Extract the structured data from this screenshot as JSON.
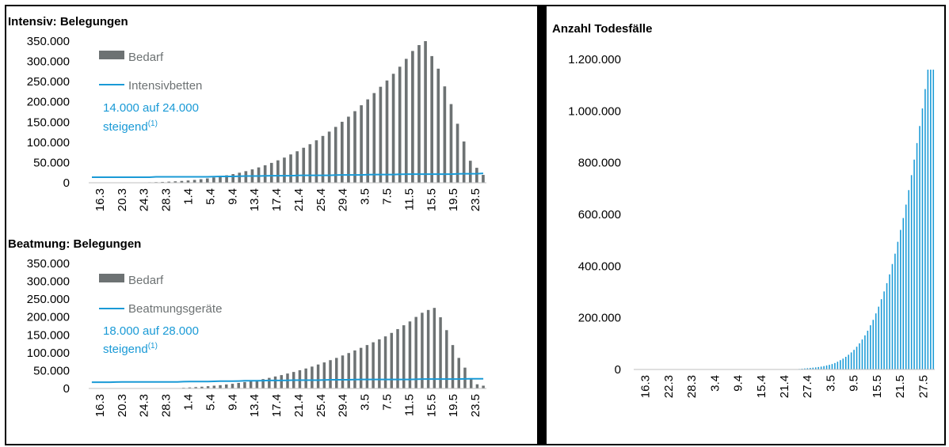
{
  "chart_data": [
    {
      "type": "bar",
      "title": "Intensiv: Belegungen",
      "yticks": [
        "0",
        "50.000",
        "100.000",
        "150.000",
        "200.000",
        "250.000",
        "300.000",
        "350.000"
      ],
      "ylim": [
        0,
        360000
      ],
      "xtick_labels": [
        "16.3",
        "20.3",
        "24.3",
        "28.3",
        "1.4",
        "5.4",
        "9.4",
        "13.4",
        "17.4",
        "21.4",
        "25.4",
        "29.4",
        "3.5",
        "7.5",
        "11.5",
        "15.5",
        "19.5",
        "23.5"
      ],
      "legend": {
        "bar_label": "Bedarf",
        "line_label": "Intensivbetten",
        "note": "14.000 auf 24.000",
        "note2": "steigend",
        "note_sup": "(1)"
      },
      "series": [
        {
          "name": "Bedarf",
          "kind": "bar",
          "color": "#6d7273",
          "values": [
            0,
            0,
            0,
            0,
            0,
            0,
            0,
            500,
            800,
            1200,
            1600,
            2100,
            2800,
            3600,
            4600,
            5800,
            7200,
            9000,
            11000,
            13500,
            16000,
            19000,
            22000,
            25500,
            29500,
            34000,
            39000,
            44500,
            50500,
            57000,
            64000,
            72000,
            80000,
            89000,
            98000,
            108000,
            119000,
            130000,
            142000,
            155000,
            168000,
            182000,
            197000,
            212000,
            228000,
            244000,
            260000,
            277000,
            295000,
            315000,
            335000,
            350000,
            360000,
            322000,
            290000,
            245000,
            200000,
            150000,
            105000,
            56000,
            38000,
            20000
          ]
        },
        {
          "name": "Intensivbetten",
          "kind": "line",
          "color": "#1a9ad6",
          "values": [
            14000,
            14000,
            14000,
            14000,
            14000,
            14000,
            14000,
            14000,
            14000,
            14000,
            15000,
            15000,
            15000,
            15000,
            15000,
            15000,
            15000,
            15000,
            15000,
            15500,
            16000,
            16000,
            16000,
            16500,
            17000,
            17000,
            17000,
            17500,
            18000,
            18000,
            18000,
            18000,
            18500,
            19000,
            19000,
            19000,
            19000,
            19000,
            19500,
            20000,
            20000,
            20000,
            20000,
            20500,
            21000,
            21000,
            21000,
            21000,
            21500,
            22000,
            22000,
            22000,
            22000,
            22000,
            22000,
            22000,
            22000,
            22500,
            23000,
            23000,
            23000,
            24000
          ]
        }
      ]
    },
    {
      "type": "bar",
      "title": "Beatmung: Belegungen",
      "yticks": [
        "0",
        "50.000",
        "100.000",
        "150.000",
        "200.000",
        "250.000",
        "300.000",
        "350.000"
      ],
      "ylim": [
        0,
        360000
      ],
      "xtick_labels": [
        "16.3",
        "20.3",
        "24.3",
        "28.3",
        "1.4",
        "5.4",
        "9.4",
        "13.4",
        "17.4",
        "21.4",
        "25.4",
        "29.4",
        "3.5",
        "7.5",
        "11.5",
        "15.5",
        "19.5",
        "23.5"
      ],
      "legend": {
        "bar_label": "Bedarf",
        "line_label": "Beatmungsgeräte",
        "note": "18.000 auf 28.000",
        "note2": "steigend",
        "note_sup": "(1)"
      },
      "series": [
        {
          "name": "Bedarf",
          "kind": "bar",
          "color": "#6d7273",
          "values": [
            0,
            0,
            0,
            0,
            0,
            0,
            0,
            0,
            0,
            0,
            0,
            0,
            0,
            0,
            0,
            2000,
            3000,
            4000,
            5000,
            6500,
            8000,
            9500,
            11500,
            13500,
            16000,
            18500,
            21000,
            24000,
            27000,
            30500,
            34500,
            38500,
            43000,
            47500,
            52500,
            57500,
            63000,
            69000,
            75000,
            81500,
            88000,
            95000,
            102000,
            109500,
            117000,
            125000,
            133000,
            141500,
            150000,
            160000,
            171000,
            182000,
            193000,
            206000,
            218000,
            226000,
            232000,
            205000,
            168000,
            125000,
            88000,
            60000,
            28000,
            12000,
            8000
          ]
        },
        {
          "name": "Beatmungsgeräte",
          "kind": "line",
          "color": "#1a9ad6",
          "values": [
            18000,
            18000,
            18000,
            18000,
            18500,
            19000,
            19000,
            19000,
            19000,
            19000,
            19000,
            19000,
            19000,
            19000,
            19000,
            19500,
            20000,
            20000,
            20000,
            20000,
            20500,
            21000,
            21000,
            21000,
            21500,
            22000,
            22000,
            22000,
            22500,
            23000,
            23000,
            23000,
            23500,
            24000,
            24000,
            24000,
            24000,
            24000,
            24500,
            25000,
            25000,
            25000,
            25000,
            25500,
            26000,
            26000,
            26000,
            26000,
            26000,
            26000,
            26000,
            26000,
            26000,
            26500,
            27000,
            27000,
            27000,
            27000,
            27000,
            27000,
            27000,
            27500,
            28000,
            28000,
            28000
          ]
        }
      ]
    },
    {
      "type": "bar",
      "title": "Anzahl Todesfälle",
      "yticks": [
        "0",
        "200.000",
        "400.000",
        "600.000",
        "800.000",
        "1.000.000",
        "1.200.000"
      ],
      "ylim": [
        0,
        1200000
      ],
      "xtick_labels": [
        "16.3",
        "22.3",
        "28.3",
        "3.4",
        "9.4",
        "15.4",
        "21.4",
        "27.4",
        "3.5",
        "9.5",
        "15.5",
        "21.5",
        "27.5"
      ],
      "series": [
        {
          "name": "Todesfälle",
          "kind": "bar",
          "color": "#1a9ad6",
          "values": [
            0,
            0,
            0,
            0,
            0,
            0,
            0,
            0,
            0,
            0,
            0,
            0,
            0,
            0,
            0,
            0,
            0,
            0,
            0,
            0,
            0,
            0,
            0,
            0,
            0,
            0,
            0,
            0,
            0,
            0,
            0,
            0,
            0,
            0,
            0,
            0,
            0,
            0,
            0,
            0,
            0,
            0,
            0,
            0,
            0,
            0,
            0,
            0,
            0,
            0,
            0,
            0,
            0,
            0,
            0,
            0,
            0,
            0,
            0,
            0,
            2000,
            3000,
            4000,
            5000,
            6000,
            7000,
            8000,
            9500,
            11000,
            13000,
            15500,
            18000,
            21000,
            25000,
            30000,
            36000,
            42000,
            49000,
            57000,
            66000,
            76000,
            88000,
            101000,
            116000,
            132000,
            150000,
            171000,
            192000,
            217000,
            243000,
            272000,
            302000,
            334000,
            368000,
            408000,
            448000,
            494000,
            540000,
            586000,
            638000,
            694000,
            752000,
            812000,
            876000,
            942000,
            1010000,
            1085000,
            1160000,
            1160000,
            1160000
          ]
        }
      ]
    }
  ]
}
